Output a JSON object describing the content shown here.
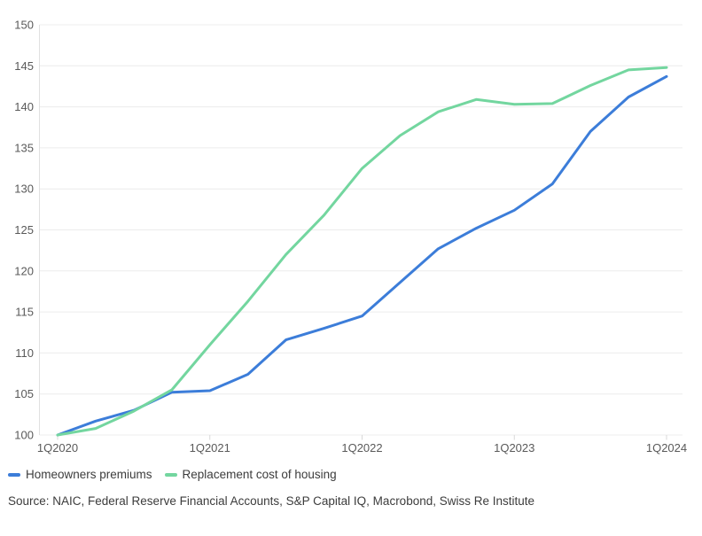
{
  "chart_data": {
    "type": "line",
    "title": "",
    "xlabel": "",
    "ylabel": "",
    "categories": [
      "1Q2020",
      "2Q2020",
      "3Q2020",
      "4Q2020",
      "1Q2021",
      "2Q2021",
      "3Q2021",
      "4Q2021",
      "1Q2022",
      "2Q2022",
      "3Q2022",
      "4Q2022",
      "1Q2023",
      "2Q2023",
      "3Q2023",
      "4Q2023",
      "1Q2024"
    ],
    "x_tick_every": 4,
    "x_tick_labels": [
      "1Q2020",
      "1Q2021",
      "1Q2022",
      "1Q2023",
      "1Q2024"
    ],
    "y_ticks": [
      100,
      105,
      110,
      115,
      120,
      125,
      130,
      135,
      140,
      145,
      150
    ],
    "ylim": [
      100,
      150
    ],
    "grid": "horizontal",
    "legend_position": "bottom-left",
    "series": [
      {
        "name": "Homeowners premiums",
        "color": "#3c7dd9",
        "values": [
          100,
          101.7,
          103.0,
          105.2,
          105.4,
          107.4,
          111.6,
          113.0,
          114.5,
          118.6,
          122.7,
          125.2,
          127.4,
          130.6,
          137.0,
          141.2,
          143.7
        ]
      },
      {
        "name": "Replacement cost of housing",
        "color": "#73d69f",
        "values": [
          100,
          100.8,
          102.9,
          105.5,
          111.0,
          116.3,
          122.0,
          126.8,
          132.5,
          136.5,
          139.4,
          140.9,
          140.3,
          140.4,
          142.6,
          144.5,
          144.8
        ]
      }
    ]
  },
  "source_note": "Source: NAIC, Federal Reserve Financial Accounts, S&P Capital IQ, Macrobond, Swiss Re Institute",
  "colors": {
    "background": "#ffffff",
    "gridline": "#ececec",
    "axis_line": "#e0e0e0",
    "tick_mark": "#d8d8d8",
    "axis_label": "#595959",
    "text": "#3c3c3c"
  }
}
